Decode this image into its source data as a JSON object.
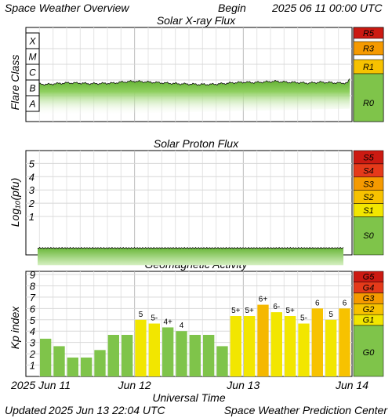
{
  "header": {
    "title": "Space Weather Overview",
    "begin_label": "Begin",
    "begin_value": "2025 06 11 00:00 UTC"
  },
  "footer": {
    "updated_label": "Updated",
    "updated_value": "2025 Jun 13 22:04 UTC",
    "source": "Space Weather Prediction Center"
  },
  "x_axis": {
    "title": "Universal Time",
    "tick_labels": [
      "2025 Jun 11",
      "Jun 12",
      "Jun 13",
      "Jun 14"
    ]
  },
  "colors": {
    "green": "#7fc44a",
    "yellow": "#f2e600",
    "amber": "#f7c200",
    "orange": "#f59a00",
    "red": "#e53a1a",
    "darkred": "#cc1a12"
  },
  "chart_data": [
    {
      "type": "area",
      "title": "Solar X-ray Flux",
      "ylabel": "Flare Class",
      "y_scale": "log",
      "y_levels": [
        "A",
        "B",
        "C",
        "M",
        "X"
      ],
      "x_range_days": [
        0,
        3
      ],
      "series": [
        {
          "x_days": [
            0.0,
            0.1,
            0.2,
            0.3,
            0.4,
            0.5,
            0.6,
            0.7,
            0.8,
            0.9,
            1.0,
            1.1,
            1.2,
            1.3,
            1.4,
            1.5,
            1.6,
            1.7,
            1.8,
            1.9,
            2.0,
            2.1,
            2.2,
            2.3,
            2.4,
            2.5,
            2.6,
            2.7,
            2.8,
            2.9,
            2.96,
            2.99,
            3.0
          ],
          "level": [
            1.6,
            1.75,
            1.72,
            1.78,
            1.82,
            1.8,
            1.76,
            1.78,
            1.8,
            1.88,
            1.92,
            1.88,
            1.84,
            1.8,
            1.76,
            1.74,
            1.72,
            1.72,
            1.76,
            1.82,
            1.86,
            1.84,
            1.88,
            1.92,
            1.86,
            1.84,
            1.8,
            1.86,
            1.84,
            1.8,
            1.82,
            2.2,
            1.7
          ]
        }
      ],
      "scale_labels": [
        "R5",
        "R3",
        "R1",
        "R0"
      ]
    },
    {
      "type": "area",
      "title": "Solar Proton Flux",
      "ylabel": "Log₁₀(pfu)",
      "y_ticks": [
        "1",
        "2",
        "3",
        "4",
        "5"
      ],
      "x_range_days": [
        0,
        3
      ],
      "series": [
        {
          "x_days": [
            0,
            3
          ],
          "log_pfu": [
            -0.2,
            -0.2
          ]
        }
      ],
      "scale_labels": [
        "S5",
        "S4",
        "S3",
        "S2",
        "S1",
        "S0"
      ]
    },
    {
      "type": "bar",
      "title": "Geomagnetic Activity",
      "ylabel": "Kp index",
      "y_ticks": [
        "1",
        "2",
        "3",
        "4",
        "5",
        "6",
        "7",
        "8",
        "9"
      ],
      "ylim": [
        0,
        9
      ],
      "bars": [
        {
          "kp": 3.33,
          "label": ""
        },
        {
          "kp": 2.67,
          "label": ""
        },
        {
          "kp": 1.67,
          "label": ""
        },
        {
          "kp": 1.67,
          "label": ""
        },
        {
          "kp": 2.33,
          "label": ""
        },
        {
          "kp": 3.67,
          "label": ""
        },
        {
          "kp": 3.67,
          "label": ""
        },
        {
          "kp": 5.0,
          "label": "5"
        },
        {
          "kp": 4.67,
          "label": "5-"
        },
        {
          "kp": 4.33,
          "label": "4+"
        },
        {
          "kp": 4.0,
          "label": "4"
        },
        {
          "kp": 3.67,
          "label": ""
        },
        {
          "kp": 3.67,
          "label": ""
        },
        {
          "kp": 2.67,
          "label": ""
        },
        {
          "kp": 5.33,
          "label": "5+"
        },
        {
          "kp": 5.33,
          "label": "5+"
        },
        {
          "kp": 6.33,
          "label": "6+"
        },
        {
          "kp": 5.67,
          "label": "6-"
        },
        {
          "kp": 5.33,
          "label": "5+"
        },
        {
          "kp": 4.67,
          "label": "5-"
        },
        {
          "kp": 6.0,
          "label": "6"
        },
        {
          "kp": 5.0,
          "label": "5"
        },
        {
          "kp": 6.0,
          "label": "6"
        }
      ],
      "scale_labels": [
        "G5",
        "G4",
        "G3",
        "G2",
        "G1",
        "G0"
      ]
    }
  ]
}
